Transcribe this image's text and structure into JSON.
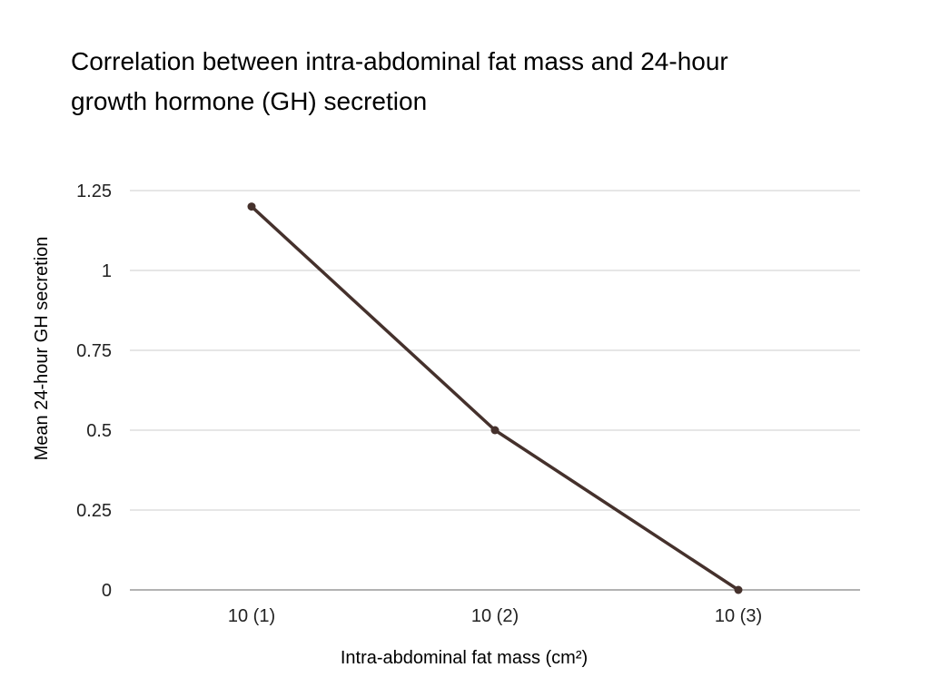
{
  "chart_data": {
    "type": "line",
    "title": "Correlation between intra-abdominal fat mass and 24-hour growth hormone (GH) secretion",
    "xlabel": "Intra-abdominal fat mass (cm²)",
    "ylabel": "Mean 24-hour GH secretion",
    "categories": [
      "10 (1)",
      "10 (2)",
      "10 (3)"
    ],
    "series": [
      {
        "values": [
          1.2,
          0.5,
          0
        ]
      }
    ],
    "ylim": [
      0,
      1.25
    ],
    "yticks": [
      "0",
      "0.25",
      "0.5",
      "0.75",
      "1",
      "1.25"
    ],
    "grid": true,
    "legend": "none",
    "colors": {
      "line": "#45312c",
      "grid": "#cccccc",
      "baseline": "#999999"
    }
  }
}
